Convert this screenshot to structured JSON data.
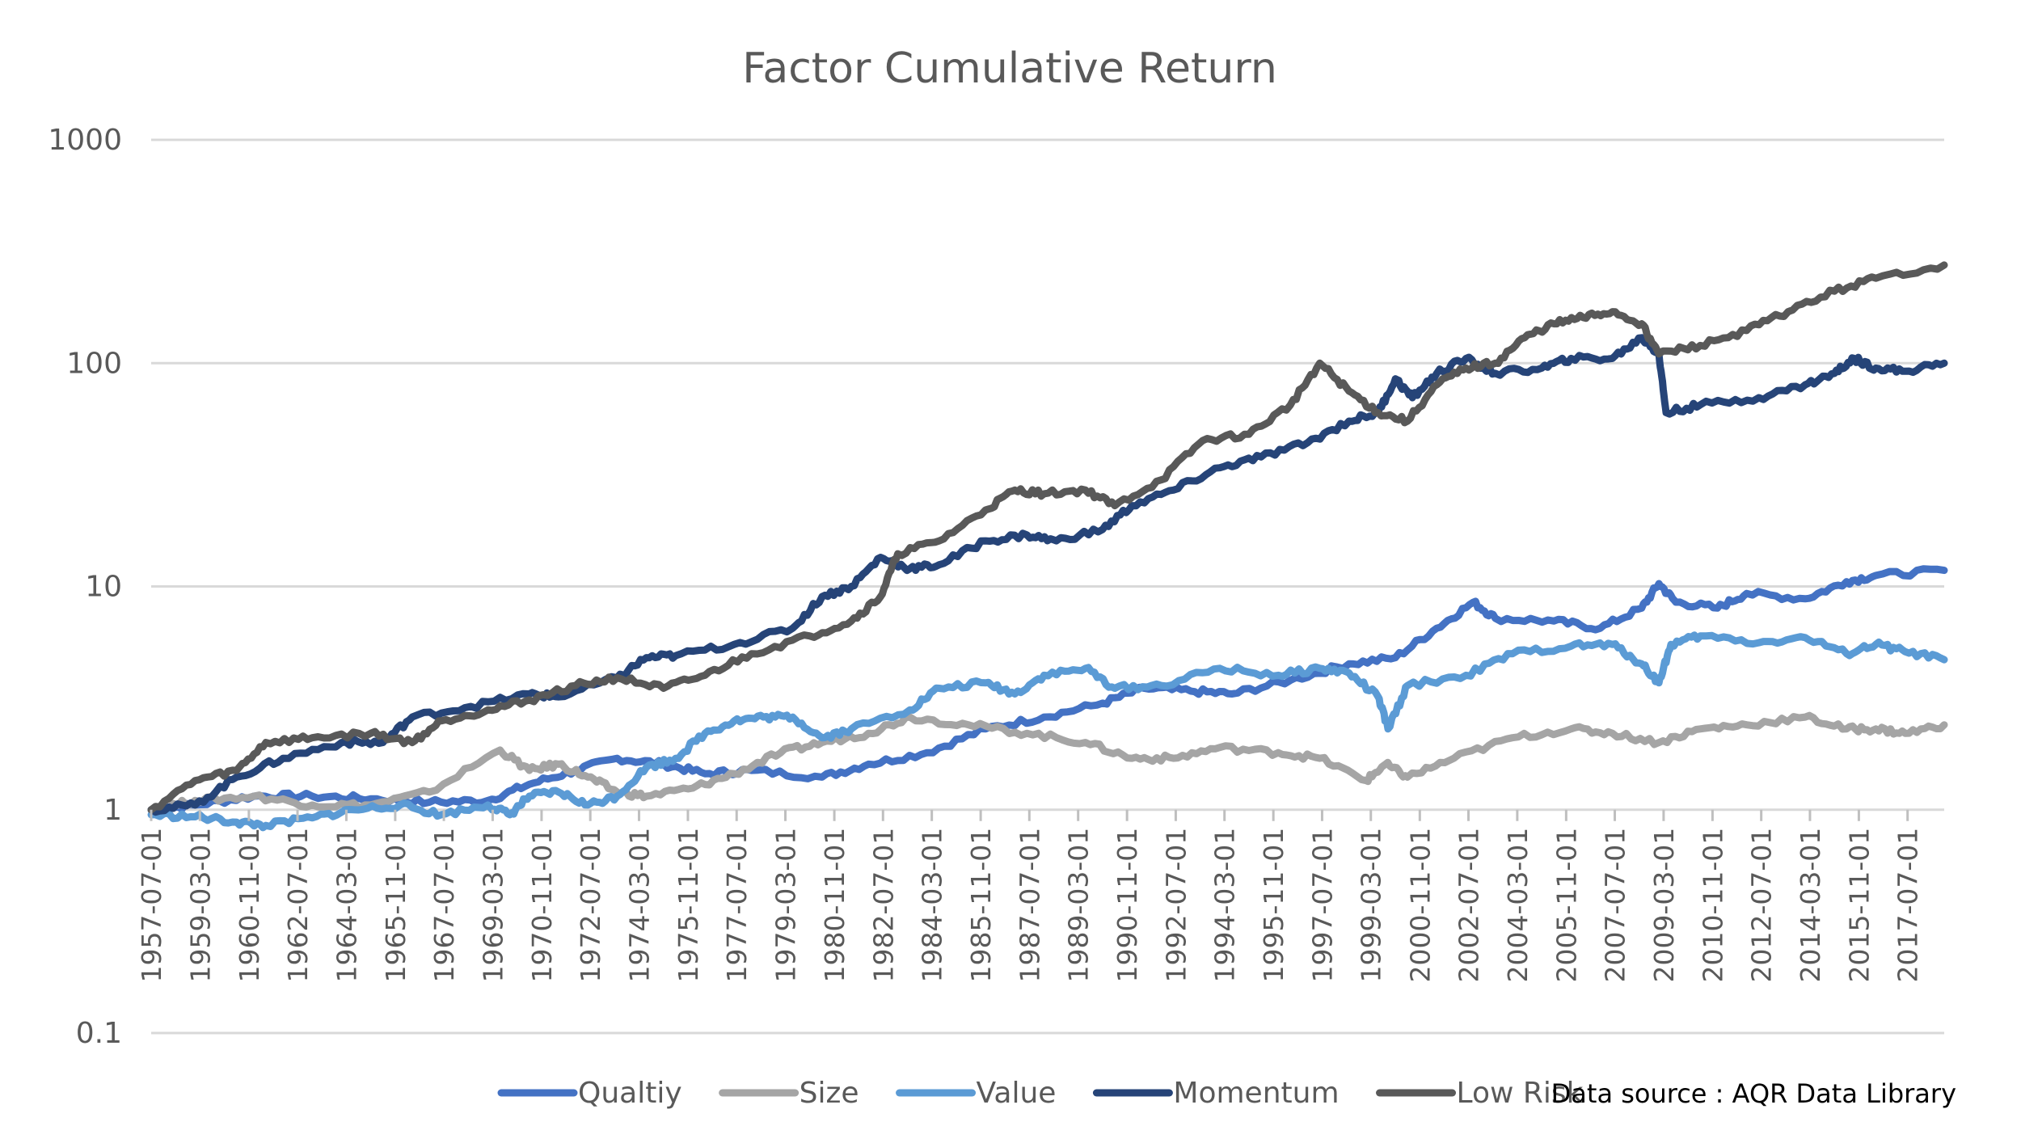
{
  "chart_data": {
    "type": "line",
    "title": "Factor Cumulative Return",
    "xlabel": "",
    "ylabel": "",
    "y_scale": "log",
    "ylim": [
      0.1,
      1000
    ],
    "y_ticks": [
      "1000",
      "100",
      "10",
      "1",
      "0.1"
    ],
    "y_tick_values": [
      1000,
      100,
      10,
      1,
      0.1
    ],
    "x_range": [
      "1957-07-01",
      "2018-10-01"
    ],
    "x_ticks": [
      "1957-07-01",
      "1959-03-01",
      "1960-11-01",
      "1962-07-01",
      "1964-03-01",
      "1965-11-01",
      "1967-07-01",
      "1969-03-01",
      "1970-11-01",
      "1972-07-01",
      "1974-03-01",
      "1975-11-01",
      "1977-07-01",
      "1979-03-01",
      "1980-11-01",
      "1982-07-01",
      "1984-03-01",
      "1985-11-01",
      "1987-07-01",
      "1989-03-01",
      "1990-11-01",
      "1992-07-01",
      "1994-03-01",
      "1995-11-01",
      "1997-07-01",
      "1999-03-01",
      "2000-11-01",
      "2002-07-01",
      "2004-03-01",
      "2005-11-01",
      "2007-07-01",
      "2009-03-01",
      "2010-11-01",
      "2012-07-01",
      "2014-03-01",
      "2015-11-01",
      "2017-07-01"
    ],
    "grid": true,
    "legend_position": "bottom",
    "series": [
      {
        "name": "Qualtiy",
        "color": "#4472c4",
        "points": [
          [
            "1957-07-01",
            1.0
          ],
          [
            "1959-01-01",
            1.05
          ],
          [
            "1961-01-01",
            1.15
          ],
          [
            "1963-01-01",
            1.15
          ],
          [
            "1965-01-01",
            1.12
          ],
          [
            "1967-01-01",
            1.08
          ],
          [
            "1969-01-01",
            1.1
          ],
          [
            "1970-06-01",
            1.3
          ],
          [
            "1972-01-01",
            1.5
          ],
          [
            "1973-06-01",
            1.7
          ],
          [
            "1975-01-01",
            1.6
          ],
          [
            "1976-06-01",
            1.45
          ],
          [
            "1978-01-01",
            1.5
          ],
          [
            "1980-06-01",
            1.4
          ],
          [
            "1982-01-01",
            1.6
          ],
          [
            "1984-01-01",
            1.8
          ],
          [
            "1986-01-01",
            2.3
          ],
          [
            "1988-01-01",
            2.6
          ],
          [
            "1990-01-01",
            3.0
          ],
          [
            "1991-06-01",
            3.5
          ],
          [
            "1993-01-01",
            3.4
          ],
          [
            "1994-06-01",
            3.3
          ],
          [
            "1996-06-01",
            3.8
          ],
          [
            "1998-06-01",
            4.5
          ],
          [
            "2000-01-01",
            4.8
          ],
          [
            "2001-06-01",
            6.5
          ],
          [
            "2002-09-01",
            8.5
          ],
          [
            "2003-06-01",
            7.2
          ],
          [
            "2005-06-01",
            7.0
          ],
          [
            "2007-01-01",
            6.5
          ],
          [
            "2008-06-01",
            8.0
          ],
          [
            "2009-01-01",
            10.3
          ],
          [
            "2009-08-01",
            8.5
          ],
          [
            "2011-01-01",
            8.0
          ],
          [
            "2012-01-01",
            9.3
          ],
          [
            "2014-01-01",
            8.8
          ],
          [
            "2015-06-01",
            10.5
          ],
          [
            "2016-06-01",
            11.2
          ],
          [
            "2018-10-01",
            11.8
          ]
        ]
      },
      {
        "name": "Size",
        "color": "#a5a5a5",
        "points": [
          [
            "1957-07-01",
            1.0
          ],
          [
            "1959-01-01",
            1.1
          ],
          [
            "1961-01-01",
            1.15
          ],
          [
            "1963-01-01",
            1.05
          ],
          [
            "1965-01-01",
            1.05
          ],
          [
            "1967-01-01",
            1.2
          ],
          [
            "1969-06-01",
            1.85
          ],
          [
            "1970-06-01",
            1.5
          ],
          [
            "1971-06-01",
            1.6
          ],
          [
            "1972-06-01",
            1.4
          ],
          [
            "1973-06-01",
            1.2
          ],
          [
            "1974-06-01",
            1.15
          ],
          [
            "1976-01-01",
            1.25
          ],
          [
            "1977-06-01",
            1.45
          ],
          [
            "1979-01-01",
            1.8
          ],
          [
            "1980-06-01",
            2.0
          ],
          [
            "1982-01-01",
            2.2
          ],
          [
            "1983-06-01",
            2.6
          ],
          [
            "1985-06-01",
            2.4
          ],
          [
            "1987-06-01",
            2.2
          ],
          [
            "1989-06-01",
            2.0
          ],
          [
            "1991-01-01",
            1.7
          ],
          [
            "1992-06-01",
            1.7
          ],
          [
            "1994-01-01",
            1.9
          ],
          [
            "1996-01-01",
            1.8
          ],
          [
            "1997-06-01",
            1.7
          ],
          [
            "1999-01-01",
            1.35
          ],
          [
            "1999-09-01",
            1.6
          ],
          [
            "2000-06-01",
            1.4
          ],
          [
            "2002-01-01",
            1.7
          ],
          [
            "2004-01-01",
            2.1
          ],
          [
            "2006-01-01",
            2.3
          ],
          [
            "2007-06-01",
            2.2
          ],
          [
            "2009-01-01",
            2.0
          ],
          [
            "2010-06-01",
            2.3
          ],
          [
            "2012-01-01",
            2.4
          ],
          [
            "2014-01-01",
            2.6
          ],
          [
            "2015-06-01",
            2.3
          ],
          [
            "2016-06-01",
            2.3
          ],
          [
            "2017-06-01",
            2.2
          ],
          [
            "2018-10-01",
            2.4
          ]
        ]
      },
      {
        "name": "Value",
        "color": "#5b9bd5",
        "points": [
          [
            "1957-07-01",
            0.95
          ],
          [
            "1959-01-01",
            0.93
          ],
          [
            "1960-06-01",
            0.88
          ],
          [
            "1961-06-01",
            0.85
          ],
          [
            "1963-01-01",
            0.92
          ],
          [
            "1964-06-01",
            1.0
          ],
          [
            "1966-01-01",
            1.05
          ],
          [
            "1967-06-01",
            0.95
          ],
          [
            "1969-01-01",
            1.05
          ],
          [
            "1969-10-01",
            0.95
          ],
          [
            "1970-06-01",
            1.15
          ],
          [
            "1971-06-01",
            1.2
          ],
          [
            "1972-06-01",
            1.05
          ],
          [
            "1973-06-01",
            1.15
          ],
          [
            "1974-06-01",
            1.55
          ],
          [
            "1975-06-01",
            1.7
          ],
          [
            "1976-06-01",
            2.2
          ],
          [
            "1977-06-01",
            2.5
          ],
          [
            "1978-06-01",
            2.6
          ],
          [
            "1979-06-01",
            2.6
          ],
          [
            "1980-06-01",
            2.1
          ],
          [
            "1981-06-01",
            2.3
          ],
          [
            "1983-06-01",
            2.8
          ],
          [
            "1984-06-01",
            3.5
          ],
          [
            "1986-01-01",
            3.7
          ],
          [
            "1987-01-01",
            3.3
          ],
          [
            "1988-01-01",
            4.0
          ],
          [
            "1989-06-01",
            4.3
          ],
          [
            "1990-06-01",
            3.5
          ],
          [
            "1992-01-01",
            3.6
          ],
          [
            "1994-01-01",
            4.3
          ],
          [
            "1996-01-01",
            4.0
          ],
          [
            "1997-06-01",
            4.3
          ],
          [
            "1998-06-01",
            4.1
          ],
          [
            "1999-06-01",
            3.2
          ],
          [
            "1999-10-01",
            2.3
          ],
          [
            "2000-06-01",
            3.6
          ],
          [
            "2002-06-01",
            4.0
          ],
          [
            "2004-01-01",
            5.0
          ],
          [
            "2006-01-01",
            5.4
          ],
          [
            "2007-06-01",
            5.5
          ],
          [
            "2008-06-01",
            4.5
          ],
          [
            "2009-01-01",
            3.7
          ],
          [
            "2009-06-01",
            5.5
          ],
          [
            "2010-06-01",
            6.0
          ],
          [
            "2012-06-01",
            5.6
          ],
          [
            "2014-01-01",
            5.9
          ],
          [
            "2015-06-01",
            5.0
          ],
          [
            "2016-06-01",
            5.5
          ],
          [
            "2017-06-01",
            5.1
          ],
          [
            "2018-10-01",
            4.7
          ]
        ]
      },
      {
        "name": "Momentum",
        "color": "#264478",
        "points": [
          [
            "1957-07-01",
            1.0
          ],
          [
            "1959-01-01",
            1.05
          ],
          [
            "1960-06-01",
            1.4
          ],
          [
            "1962-01-01",
            1.7
          ],
          [
            "1964-01-01",
            2.0
          ],
          [
            "1965-06-01",
            2.0
          ],
          [
            "1966-06-01",
            2.6
          ],
          [
            "1968-06-01",
            2.9
          ],
          [
            "1970-06-01",
            3.3
          ],
          [
            "1971-06-01",
            3.2
          ],
          [
            "1973-06-01",
            3.9
          ],
          [
            "1974-06-01",
            4.8
          ],
          [
            "1975-06-01",
            4.9
          ],
          [
            "1977-06-01",
            5.5
          ],
          [
            "1979-06-01",
            6.5
          ],
          [
            "1980-06-01",
            9.0
          ],
          [
            "1981-06-01",
            10.0
          ],
          [
            "1982-06-01",
            13.5
          ],
          [
            "1983-06-01",
            12.0
          ],
          [
            "1984-06-01",
            12.5
          ],
          [
            "1986-01-01",
            16.0
          ],
          [
            "1987-06-01",
            17.0
          ],
          [
            "1988-06-01",
            16.0
          ],
          [
            "1990-01-01",
            18.0
          ],
          [
            "1991-01-01",
            23.0
          ],
          [
            "1992-06-01",
            27.0
          ],
          [
            "1994-01-01",
            34.0
          ],
          [
            "1995-06-01",
            38.0
          ],
          [
            "1997-01-01",
            44.0
          ],
          [
            "1998-06-01",
            55.0
          ],
          [
            "1999-06-01",
            60.0
          ],
          [
            "2000-01-01",
            85.0
          ],
          [
            "2000-08-01",
            70.0
          ],
          [
            "2001-06-01",
            90.0
          ],
          [
            "2002-06-01",
            105.0
          ],
          [
            "2003-06-01",
            90.0
          ],
          [
            "2005-01-01",
            95.0
          ],
          [
            "2006-01-01",
            105.0
          ],
          [
            "2007-06-01",
            105.0
          ],
          [
            "2008-06-01",
            130.0
          ],
          [
            "2009-01-01",
            110.0
          ],
          [
            "2009-04-01",
            60.0
          ],
          [
            "2010-06-01",
            65.0
          ],
          [
            "2012-06-01",
            70.0
          ],
          [
            "2014-01-01",
            80.0
          ],
          [
            "2015-01-01",
            90.0
          ],
          [
            "2015-09-01",
            105.0
          ],
          [
            "2016-06-01",
            95.0
          ],
          [
            "2017-06-01",
            92.0
          ],
          [
            "2018-10-01",
            100.0
          ]
        ]
      },
      {
        "name": "Low Risk",
        "color": "#595959",
        "points": [
          [
            "1957-07-01",
            1.0
          ],
          [
            "1959-01-01",
            1.35
          ],
          [
            "1960-06-01",
            1.5
          ],
          [
            "1961-06-01",
            2.0
          ],
          [
            "1963-01-01",
            2.1
          ],
          [
            "1965-01-01",
            2.2
          ],
          [
            "1966-06-01",
            2.0
          ],
          [
            "1967-06-01",
            2.5
          ],
          [
            "1969-01-01",
            2.8
          ],
          [
            "1970-06-01",
            3.1
          ],
          [
            "1972-01-01",
            3.6
          ],
          [
            "1973-06-01",
            3.9
          ],
          [
            "1975-01-01",
            3.5
          ],
          [
            "1976-06-01",
            4.0
          ],
          [
            "1978-01-01",
            5.0
          ],
          [
            "1980-01-01",
            6.0
          ],
          [
            "1981-06-01",
            7.0
          ],
          [
            "1982-06-01",
            9.0
          ],
          [
            "1983-01-01",
            14.0
          ],
          [
            "1984-06-01",
            16.0
          ],
          [
            "1986-01-01",
            22.0
          ],
          [
            "1987-01-01",
            27.0
          ],
          [
            "1988-01-01",
            26.0
          ],
          [
            "1989-06-01",
            27.0
          ],
          [
            "1990-06-01",
            23.0
          ],
          [
            "1992-01-01",
            30.0
          ],
          [
            "1993-06-01",
            45.0
          ],
          [
            "1995-01-01",
            48.0
          ],
          [
            "1996-06-01",
            65.0
          ],
          [
            "1997-06-01",
            100.0
          ],
          [
            "1998-06-01",
            75.0
          ],
          [
            "1999-06-01",
            60.0
          ],
          [
            "2000-06-01",
            55.0
          ],
          [
            "2001-06-01",
            80.0
          ],
          [
            "2002-06-01",
            95.0
          ],
          [
            "2003-06-01",
            100.0
          ],
          [
            "2004-06-01",
            130.0
          ],
          [
            "2005-06-01",
            150.0
          ],
          [
            "2006-06-01",
            160.0
          ],
          [
            "2007-06-01",
            170.0
          ],
          [
            "2008-06-01",
            150.0
          ],
          [
            "2009-01-01",
            110.0
          ],
          [
            "2010-06-01",
            120.0
          ],
          [
            "2012-01-01",
            140.0
          ],
          [
            "2013-06-01",
            170.0
          ],
          [
            "2015-01-01",
            210.0
          ],
          [
            "2016-06-01",
            240.0
          ],
          [
            "2018-10-01",
            275.0
          ]
        ]
      }
    ],
    "note": "Data source : AQR Data Library"
  }
}
